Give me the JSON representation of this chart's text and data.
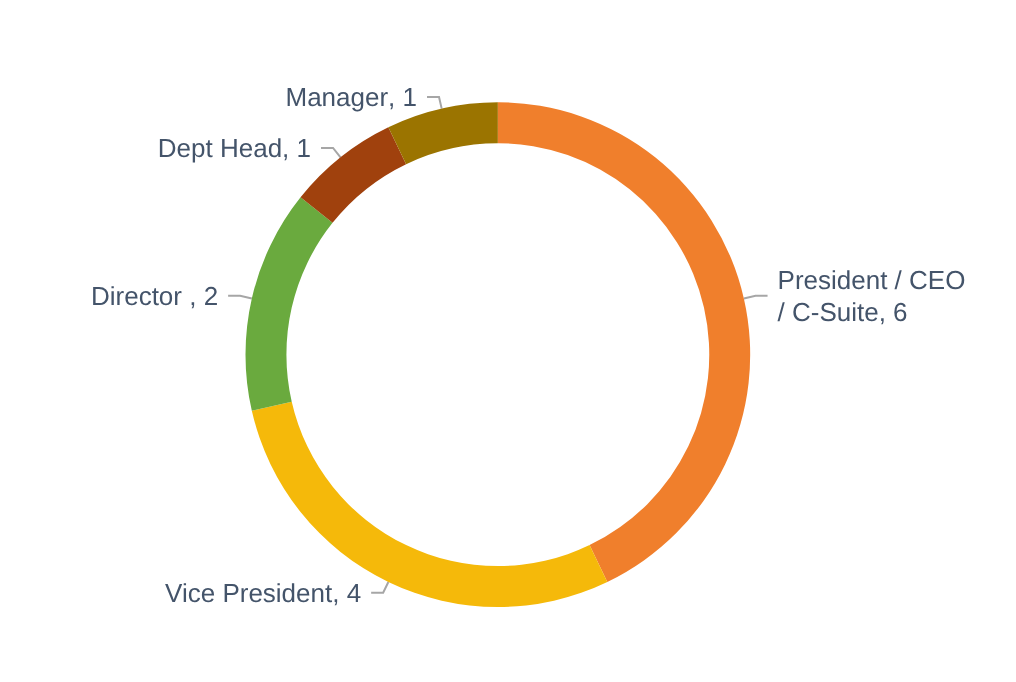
{
  "chart_data": {
    "type": "donut",
    "categories": [
      "President / CEO / C-Suite",
      "Vice President",
      "Director ",
      "Dept Head",
      "Manager"
    ],
    "values": [
      6,
      4,
      2,
      1,
      1
    ],
    "value_labels": [
      ", 6",
      ", 4",
      ", 2",
      ", 1",
      ", 1"
    ],
    "colors": [
      "#f07f2c",
      "#f5b90a",
      "#6aaa3e",
      "#a0410d",
      "#9b7400"
    ],
    "legend": false
  }
}
